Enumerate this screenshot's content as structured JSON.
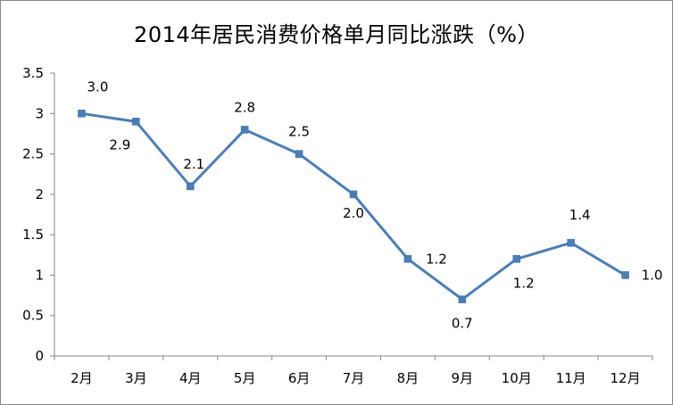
{
  "chart_data": {
    "type": "line",
    "title": "2014年居民消费价格单月同比涨跌（%）",
    "categories": [
      "2月",
      "3月",
      "4月",
      "5月",
      "6月",
      "7月",
      "8月",
      "9月",
      "10月",
      "11月",
      "12月"
    ],
    "series": [
      {
        "values": [
          3.0,
          2.9,
          2.1,
          2.8,
          2.5,
          2.0,
          1.2,
          0.7,
          1.2,
          1.4,
          1.0
        ],
        "data_labels": [
          "3.0",
          "2.9",
          "2.1",
          "2.8",
          "2.5",
          "2.0",
          "1.2",
          "0.7",
          "1.2",
          "1.4",
          "1.0"
        ],
        "color": "#4a7ebb"
      }
    ],
    "ylim": [
      0,
      3.5
    ],
    "yticks": [
      "0",
      "0.5",
      "1",
      "1.5",
      "2",
      "2.5",
      "3",
      "3.5"
    ],
    "grid": false,
    "legend": "none"
  }
}
